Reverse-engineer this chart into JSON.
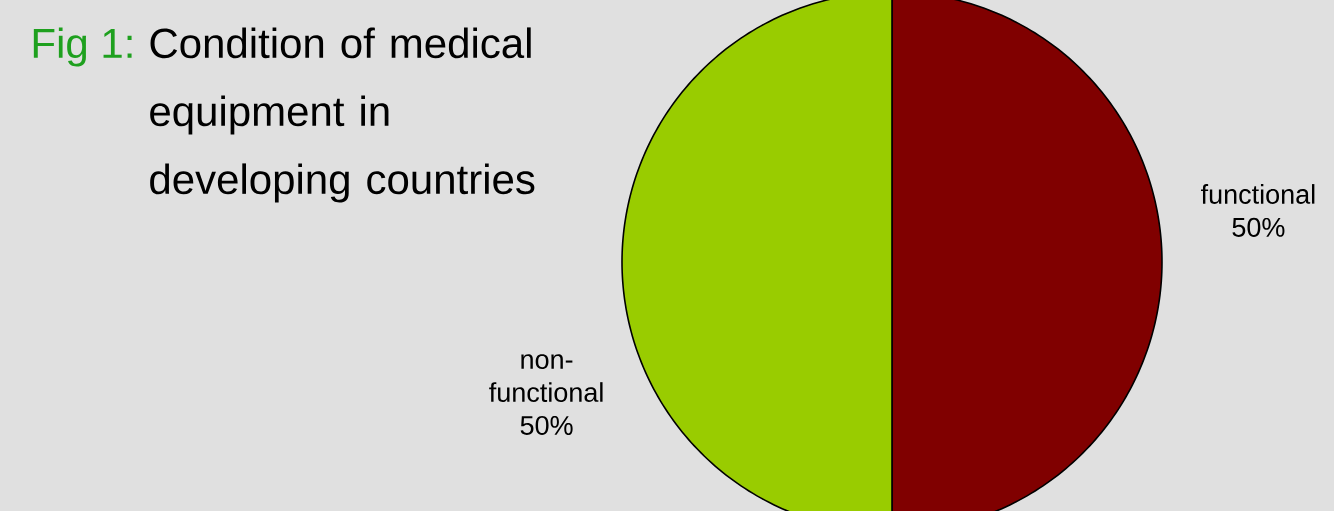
{
  "chart_data": {
    "type": "pie",
    "title": "Condition of medical equipment in developing countries",
    "annotations": [
      "Fig 1:"
    ],
    "categories": [
      "functional",
      "non-functional"
    ],
    "values": [
      50,
      50
    ],
    "colors": [
      "#800000",
      "#99cc00"
    ],
    "value_labels": [
      "50%",
      "50%"
    ]
  }
}
